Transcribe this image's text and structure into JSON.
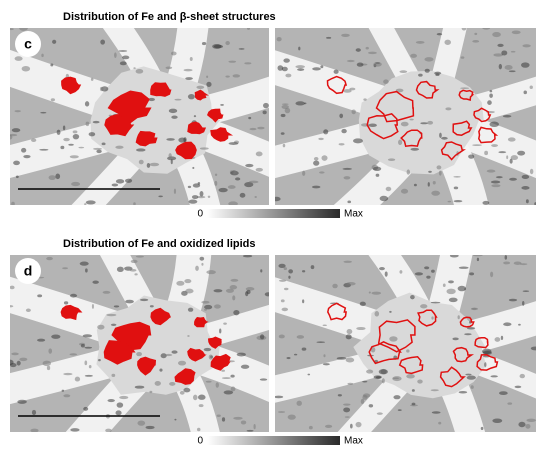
{
  "panels": [
    {
      "title": "Distribution of Fe and β-sheet structures",
      "label": "c",
      "colorbar": {
        "min": 0,
        "max": "Max"
      }
    },
    {
      "title": "Distribution of Fe and oxidized lipids",
      "label": "d",
      "colorbar": {
        "min": 0,
        "max": "Max"
      }
    }
  ]
}
